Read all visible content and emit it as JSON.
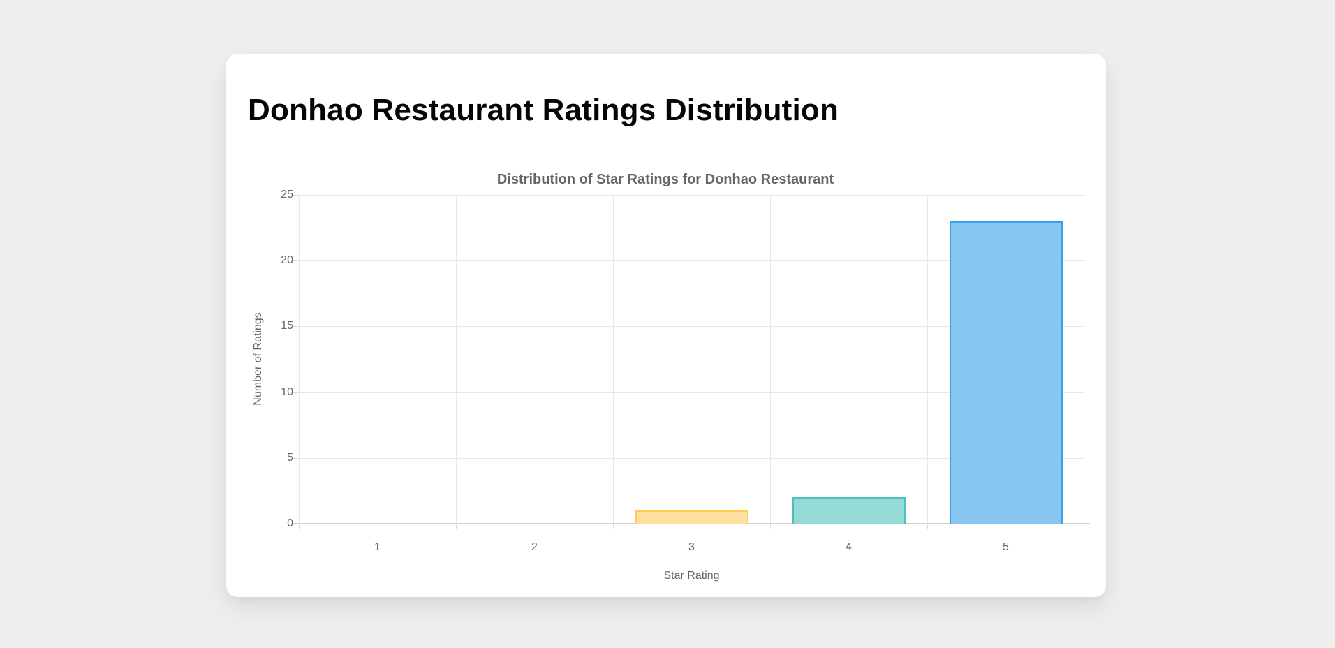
{
  "page": {
    "title": "Donhao Restaurant Ratings Distribution",
    "background_color": "#EFEFEF",
    "card_color": "#FFFFFF"
  },
  "chart_data": {
    "type": "bar",
    "title": "Distribution of Star Ratings for Donhao Restaurant",
    "categories": [
      "1",
      "2",
      "3",
      "4",
      "5"
    ],
    "values": [
      0,
      0,
      1,
      2,
      23
    ],
    "xlabel": "Star Rating",
    "ylabel": "Number of Ratings",
    "ylim": [
      0,
      25
    ],
    "yticks": [
      0,
      5,
      10,
      15,
      20,
      25
    ],
    "grid": true,
    "legend": false,
    "text_color": "#666666",
    "grid_color": "#E7E7E7",
    "bar_colors": {
      "fill": [
        null,
        null,
        "#FFE0A1",
        "#96DAD6",
        "#87C6F1"
      ],
      "border": [
        null,
        null,
        "#FFCD56",
        "#4BC0C0",
        "#36A2EB"
      ]
    }
  }
}
